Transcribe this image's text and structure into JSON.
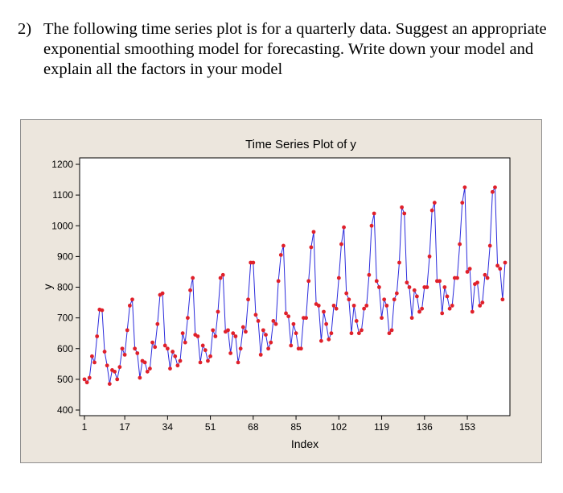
{
  "question": {
    "number": "2)",
    "lines": [
      "The following time series plot is for a quarterly data. Suggest an appropriate",
      "exponential smoothing model for forecasting. Write down your model and",
      "explain all the factors in your model"
    ]
  },
  "chart_data": {
    "type": "line",
    "title": "Time Series Plot of y",
    "xlabel": "Index",
    "ylabel": "y",
    "xlim": [
      1,
      168
    ],
    "ylim": [
      400,
      1200
    ],
    "xticks": [
      1,
      17,
      34,
      51,
      68,
      85,
      102,
      119,
      136,
      153
    ],
    "yticks": [
      400,
      500,
      600,
      700,
      800,
      900,
      1000,
      1100,
      1200
    ],
    "grid": false,
    "line_color": "#2b2bdc",
    "marker_color": "#e0202a",
    "series": [
      {
        "values": [
          500,
          490,
          505,
          575,
          555,
          640,
          727,
          725,
          590,
          545,
          485,
          530,
          525,
          500,
          540,
          600,
          580,
          660,
          740,
          760,
          600,
          585,
          505,
          560,
          555,
          525,
          535,
          620,
          605,
          680,
          775,
          780,
          610,
          600,
          535,
          590,
          575,
          545,
          560,
          650,
          620,
          700,
          790,
          830,
          645,
          640,
          555,
          610,
          595,
          560,
          575,
          660,
          640,
          720,
          830,
          840,
          655,
          660,
          585,
          650,
          640,
          555,
          600,
          670,
          655,
          760,
          880,
          880,
          710,
          690,
          580,
          660,
          645,
          600,
          620,
          690,
          680,
          820,
          905,
          935,
          715,
          705,
          610,
          680,
          650,
          600,
          600,
          700,
          700,
          820,
          930,
          980,
          745,
          740,
          625,
          720,
          680,
          630,
          650,
          740,
          730,
          830,
          940,
          995,
          780,
          760,
          650,
          740,
          690,
          650,
          660,
          730,
          740,
          840,
          1000,
          1040,
          820,
          800,
          700,
          760,
          740,
          650,
          660,
          760,
          780,
          880,
          1060,
          1040,
          815,
          800,
          700,
          790,
          770,
          720,
          730,
          800,
          800,
          900,
          1050,
          1075,
          820,
          820,
          715,
          800,
          770,
          730,
          740,
          830,
          830,
          940,
          1075,
          1125,
          850,
          860,
          720,
          810,
          815,
          740,
          750,
          840,
          830,
          935,
          1110,
          1125,
          870,
          860,
          760,
          880
        ]
      }
    ]
  }
}
